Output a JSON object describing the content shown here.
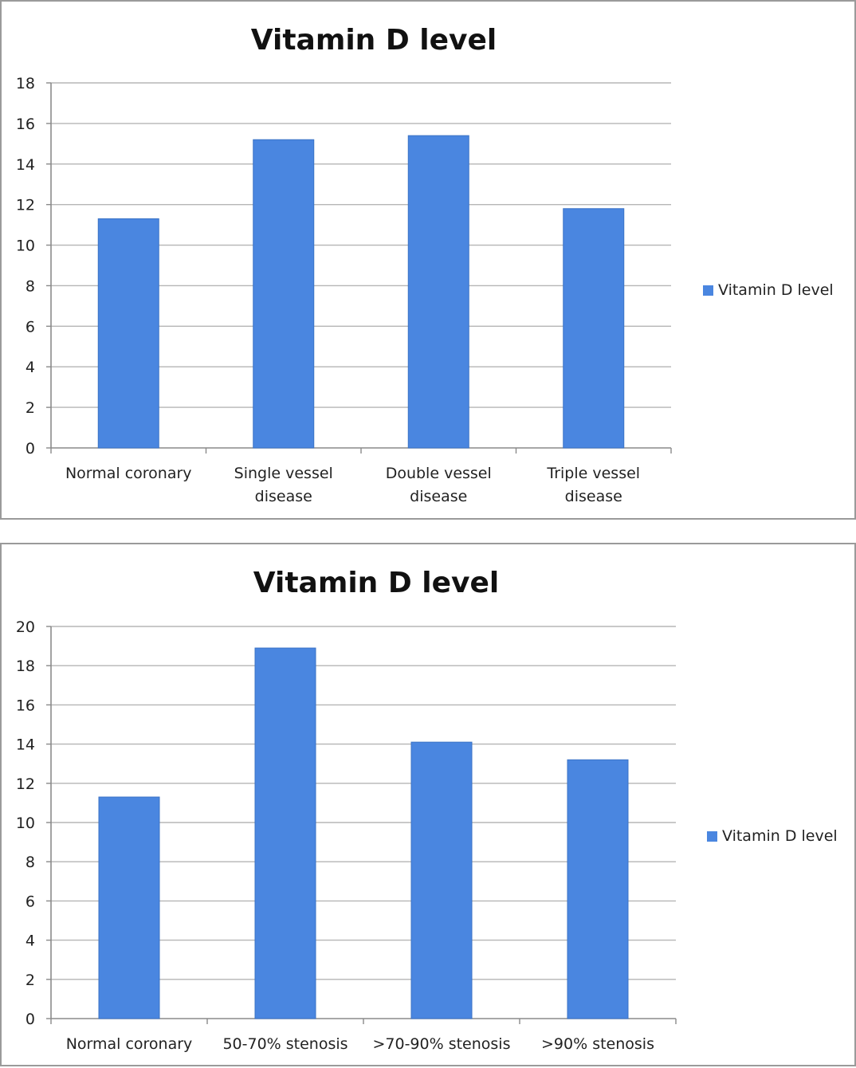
{
  "chart_data": [
    {
      "type": "bar",
      "title": "Vitamin D level",
      "categories": [
        [
          "Normal coronary"
        ],
        [
          "Single vessel",
          "disease"
        ],
        [
          "Double vessel",
          "disease"
        ],
        [
          "Triple vessel",
          "disease"
        ]
      ],
      "series": [
        {
          "name": "Vitamin D level",
          "values": [
            11.3,
            15.2,
            15.4,
            11.8
          ]
        }
      ],
      "ylim": [
        0,
        18
      ],
      "yticks": [
        0,
        2,
        4,
        6,
        8,
        10,
        12,
        14,
        16,
        18
      ],
      "grid": true,
      "legend_position": "right",
      "bar_color": "#4a86e0"
    },
    {
      "type": "bar",
      "title": "Vitamin D level",
      "categories": [
        [
          "Normal coronary"
        ],
        [
          "50-70% stenosis"
        ],
        [
          ">70-90% stenosis"
        ],
        [
          ">90% stenosis"
        ]
      ],
      "series": [
        {
          "name": "Vitamin D level",
          "values": [
            11.3,
            18.9,
            14.1,
            13.2
          ]
        }
      ],
      "ylim": [
        0,
        20
      ],
      "yticks": [
        0,
        2,
        4,
        6,
        8,
        10,
        12,
        14,
        16,
        18,
        20
      ],
      "grid": true,
      "legend_position": "right",
      "bar_color": "#4a86e0"
    }
  ]
}
